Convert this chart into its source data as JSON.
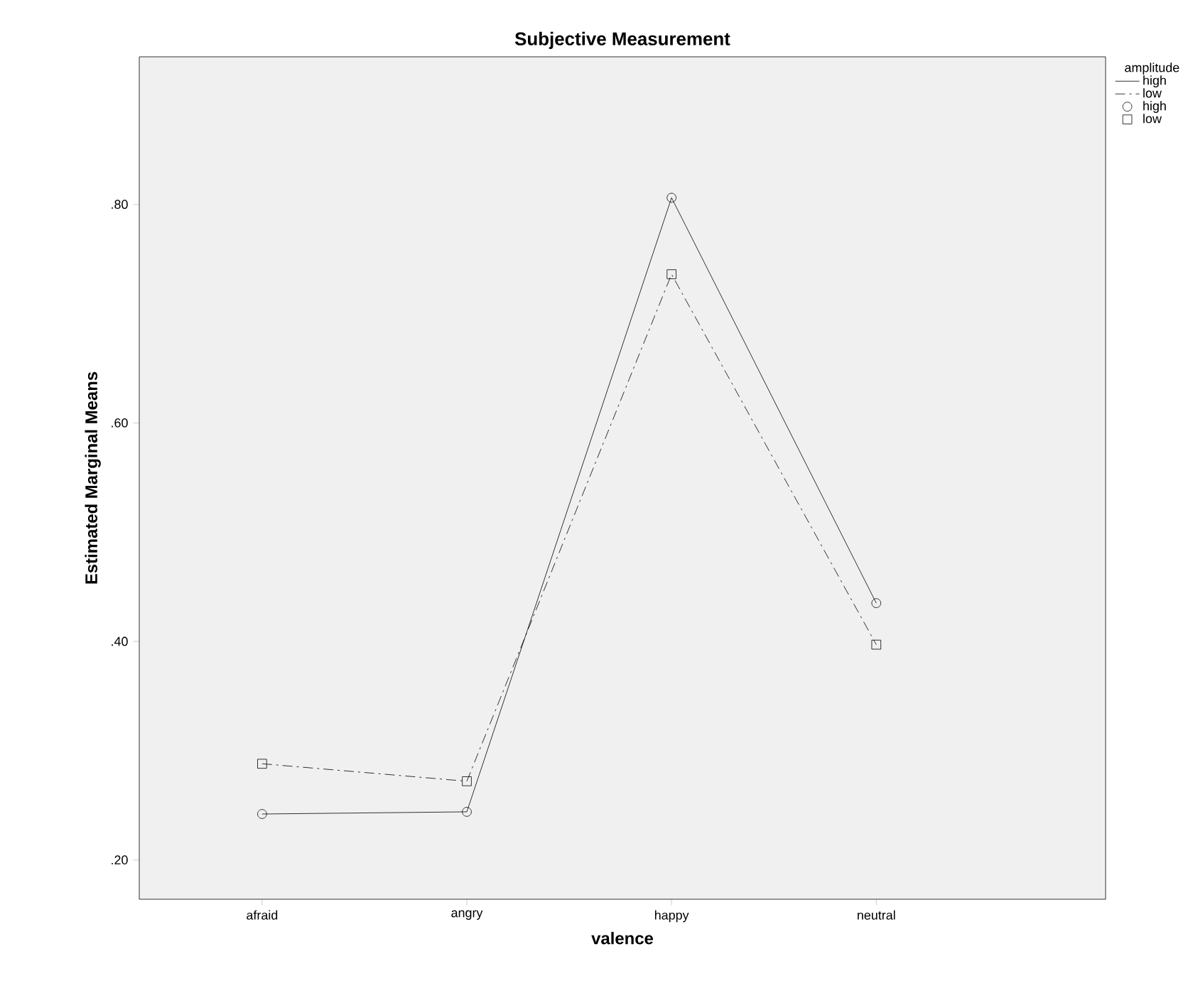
{
  "chart_data": {
    "type": "line",
    "title": "Subjective Measurement",
    "xlabel": "valence",
    "ylabel": "Estimated Marginal Means",
    "legend_title": "amplitude",
    "categories": [
      "afraid",
      "angry",
      "happy",
      "neutral"
    ],
    "series": [
      {
        "name": "high",
        "color": "#000000",
        "marker": "circle",
        "line_style": "solid",
        "values": [
          0.242,
          0.244,
          0.806,
          0.435
        ]
      },
      {
        "name": "low",
        "color": "#000000",
        "marker": "square",
        "line_style": "dashdot",
        "values": [
          0.288,
          0.272,
          0.736,
          0.397
        ]
      }
    ],
    "ylim": [
      0.164,
      0.935
    ],
    "yticks": [
      {
        "value": 0.2,
        "label": ".20"
      },
      {
        "value": 0.4,
        "label": ".40"
      },
      {
        "value": 0.6,
        "label": ".60"
      },
      {
        "value": 0.8,
        "label": ".80"
      }
    ],
    "grid": false,
    "legend": "top right"
  }
}
